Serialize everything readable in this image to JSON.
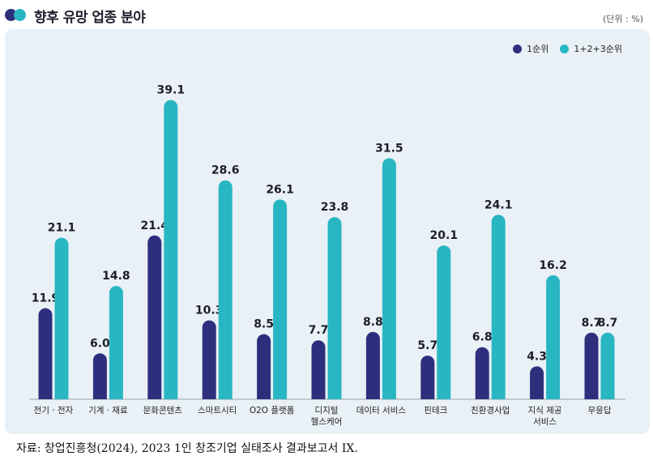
{
  "header": {
    "title": "향후 유망 업종 분야",
    "unit": "(단위 : %)"
  },
  "colors": {
    "series1": "#2d2f7d",
    "series2": "#29b6c3",
    "panel": "#e9f1f6"
  },
  "chart_data": {
    "type": "bar",
    "title": "향후 유망 업종 분야",
    "unit_label": "(단위 : %)",
    "categories": [
      [
        "전기 · 전자"
      ],
      [
        "기계 · 재료"
      ],
      [
        "문화콘텐츠"
      ],
      [
        "스마트시티"
      ],
      [
        "O2O 플랫폼"
      ],
      [
        "디지털",
        "헬스케어"
      ],
      [
        "데이터 서비스"
      ],
      [
        "핀테크"
      ],
      [
        "친환경사업"
      ],
      [
        "지식 제공",
        "서비스"
      ],
      [
        "무응답"
      ]
    ],
    "series": [
      {
        "name": "1순위",
        "values": [
          11.9,
          6.0,
          21.4,
          10.3,
          8.5,
          7.7,
          8.8,
          5.7,
          6.8,
          4.3,
          8.7
        ]
      },
      {
        "name": "1+2+3순위",
        "values": [
          21.1,
          14.8,
          39.1,
          28.6,
          26.1,
          23.8,
          31.5,
          20.1,
          24.1,
          16.2,
          8.7
        ]
      }
    ],
    "xlabel": "",
    "ylabel": "",
    "ylim": [
      0,
      40
    ],
    "legend_position": "top-right",
    "grid": false
  },
  "source": "자료: 창업진흥청(2024), 2023 1인 창조기업 실태조사 결과보고서 IX."
}
